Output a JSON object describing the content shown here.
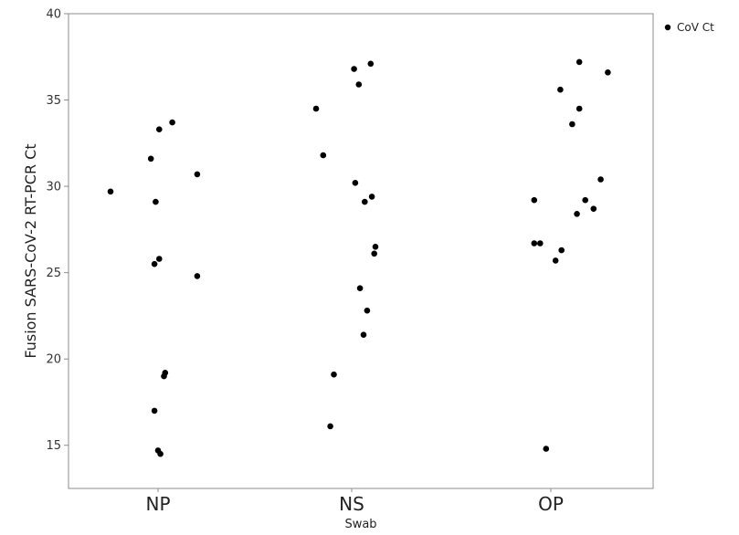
{
  "chart_data": {
    "type": "scatter",
    "title": "",
    "xlabel": "Swab",
    "ylabel": "Fusion SARS-CoV-2 RT-PCR Ct",
    "categories": [
      "NP",
      "NS",
      "OP"
    ],
    "ylim": [
      12.5,
      40
    ],
    "yticks": [
      15,
      20,
      25,
      30,
      35,
      40
    ],
    "grid": false,
    "legend_position": "top-right",
    "series": [
      {
        "name": "CoV Ct",
        "color": "#000000",
        "points": [
          {
            "x": "NP",
            "jitter": -0.4,
            "y": 29.7
          },
          {
            "x": "NP",
            "jitter": -0.06,
            "y": 31.6
          },
          {
            "x": "NP",
            "jitter": 0.01,
            "y": 33.3
          },
          {
            "x": "NP",
            "jitter": 0.12,
            "y": 33.7
          },
          {
            "x": "NP",
            "jitter": 0.33,
            "y": 30.7
          },
          {
            "x": "NP",
            "jitter": -0.02,
            "y": 29.1
          },
          {
            "x": "NP",
            "jitter": 0.01,
            "y": 25.8
          },
          {
            "x": "NP",
            "jitter": -0.03,
            "y": 25.5
          },
          {
            "x": "NP",
            "jitter": 0.33,
            "y": 24.8
          },
          {
            "x": "NP",
            "jitter": 0.06,
            "y": 19.2
          },
          {
            "x": "NP",
            "jitter": 0.05,
            "y": 19.0
          },
          {
            "x": "NP",
            "jitter": -0.03,
            "y": 17.0
          },
          {
            "x": "NP",
            "jitter": 0.0,
            "y": 14.7
          },
          {
            "x": "NP",
            "jitter": 0.02,
            "y": 14.5
          },
          {
            "x": "NS",
            "jitter": -0.3,
            "y": 34.5
          },
          {
            "x": "NS",
            "jitter": 0.02,
            "y": 36.8
          },
          {
            "x": "NS",
            "jitter": 0.16,
            "y": 37.1
          },
          {
            "x": "NS",
            "jitter": 0.06,
            "y": 35.9
          },
          {
            "x": "NS",
            "jitter": -0.24,
            "y": 31.8
          },
          {
            "x": "NS",
            "jitter": 0.03,
            "y": 30.2
          },
          {
            "x": "NS",
            "jitter": 0.17,
            "y": 29.4
          },
          {
            "x": "NS",
            "jitter": 0.11,
            "y": 29.1
          },
          {
            "x": "NS",
            "jitter": 0.2,
            "y": 26.5
          },
          {
            "x": "NS",
            "jitter": 0.19,
            "y": 26.1
          },
          {
            "x": "NS",
            "jitter": 0.07,
            "y": 24.1
          },
          {
            "x": "NS",
            "jitter": 0.13,
            "y": 22.8
          },
          {
            "x": "NS",
            "jitter": 0.1,
            "y": 21.4
          },
          {
            "x": "NS",
            "jitter": -0.15,
            "y": 19.1
          },
          {
            "x": "NS",
            "jitter": -0.18,
            "y": 16.1
          },
          {
            "x": "OP",
            "jitter": -0.14,
            "y": 29.2
          },
          {
            "x": "OP",
            "jitter": 0.08,
            "y": 35.6
          },
          {
            "x": "OP",
            "jitter": 0.24,
            "y": 37.2
          },
          {
            "x": "OP",
            "jitter": 0.48,
            "y": 36.6
          },
          {
            "x": "OP",
            "jitter": 0.24,
            "y": 34.5
          },
          {
            "x": "OP",
            "jitter": 0.18,
            "y": 33.6
          },
          {
            "x": "OP",
            "jitter": 0.42,
            "y": 30.4
          },
          {
            "x": "OP",
            "jitter": 0.29,
            "y": 29.2
          },
          {
            "x": "OP",
            "jitter": 0.36,
            "y": 28.7
          },
          {
            "x": "OP",
            "jitter": 0.22,
            "y": 28.4
          },
          {
            "x": "OP",
            "jitter": -0.14,
            "y": 26.7
          },
          {
            "x": "OP",
            "jitter": -0.09,
            "y": 26.7
          },
          {
            "x": "OP",
            "jitter": 0.09,
            "y": 26.3
          },
          {
            "x": "OP",
            "jitter": 0.04,
            "y": 25.7
          },
          {
            "x": "OP",
            "jitter": -0.04,
            "y": 14.8
          }
        ]
      }
    ]
  }
}
